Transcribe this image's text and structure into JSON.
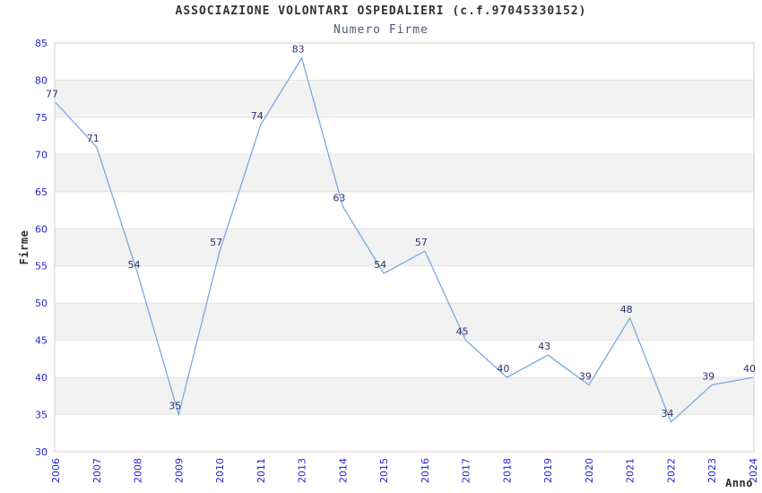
{
  "chart_data": {
    "type": "line",
    "title": "ASSOCIAZIONE VOLONTARI OSPEDALIERI (c.f.97045330152)",
    "subtitle": "Numero Firme",
    "xlabel": "Anno",
    "ylabel": "Firme",
    "categories": [
      "2006",
      "2007",
      "2008",
      "2009",
      "2010",
      "2011",
      "2013",
      "2014",
      "2015",
      "2016",
      "2017",
      "2018",
      "2019",
      "2020",
      "2021",
      "2022",
      "2023",
      "2024"
    ],
    "values": [
      77,
      71,
      54,
      35,
      57,
      74,
      83,
      63,
      54,
      57,
      45,
      40,
      43,
      39,
      48,
      34,
      39,
      40
    ],
    "ylim": [
      30,
      85
    ],
    "ytick_step": 5,
    "yticks": [
      85,
      80,
      75,
      70,
      65,
      60,
      55,
      50,
      45,
      40,
      35,
      30
    ],
    "grid": "horizontal-bands",
    "legend_position": "none",
    "point_labels_visible": true,
    "x_tick_rotation_deg": -90,
    "colors": {
      "line": "#79a9e5",
      "tick_label": "#2424cc",
      "point_label": "#30306d",
      "band_fill": "#f2f2f2",
      "gridline": "#e4e4e4",
      "plot_border": "#cfcfcf",
      "title": "#333333",
      "subtitle": "#4d5a77",
      "axis_title": "#2b2b2b",
      "background": "#ffffff"
    }
  }
}
